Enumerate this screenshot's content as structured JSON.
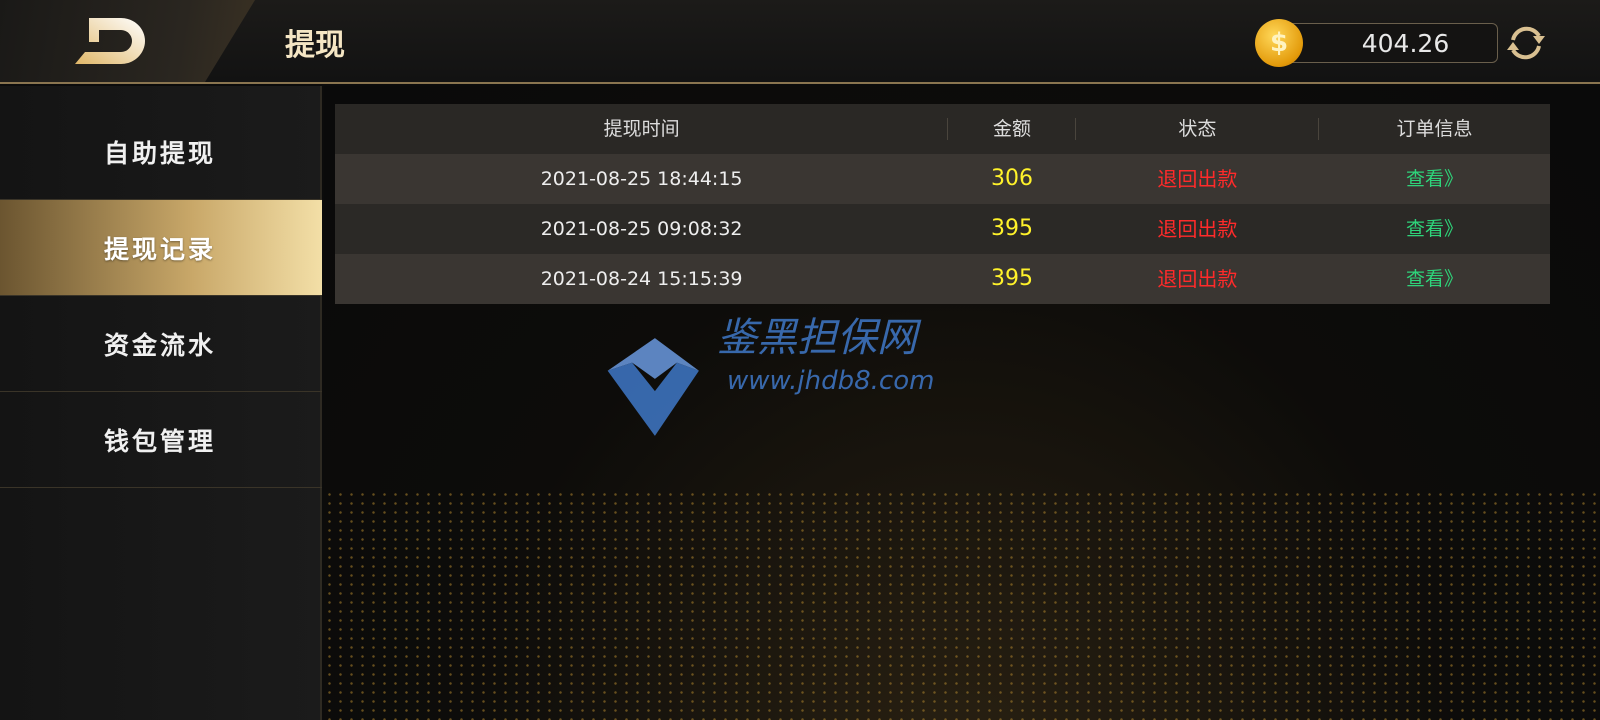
{
  "header": {
    "title": "提现",
    "balance": "404.26",
    "back_icon": "back-logo-icon",
    "coin_icon": "coin-icon",
    "refresh_icon": "refresh-icon"
  },
  "sidebar": {
    "items": [
      {
        "label": "自助提现",
        "active": false
      },
      {
        "label": "提现记录",
        "active": true
      },
      {
        "label": "资金流水",
        "active": false
      },
      {
        "label": "钱包管理",
        "active": false
      }
    ]
  },
  "table": {
    "columns": [
      "提现时间",
      "金额",
      "状态",
      "订单信息"
    ],
    "rows": [
      {
        "time": "2021-08-25 18:44:15",
        "amount": "306",
        "status": "退回出款",
        "info": "查看》"
      },
      {
        "time": "2021-08-25 09:08:32",
        "amount": "395",
        "status": "退回出款",
        "info": "查看》"
      },
      {
        "time": "2021-08-24 15:15:39",
        "amount": "395",
        "status": "退回出款",
        "info": "查看》"
      }
    ]
  },
  "watermark": {
    "title": "鉴黑担保网",
    "url": "www.jhdb8.com"
  },
  "colors": {
    "accent": "#c9a869",
    "amount": "#fff22a",
    "status": "#ff2a2a",
    "link": "#2ed47a"
  }
}
